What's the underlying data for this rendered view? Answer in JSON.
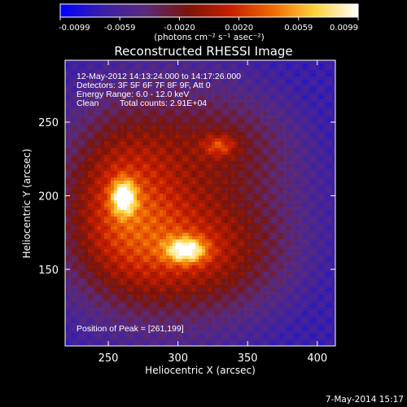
{
  "chart_data": {
    "type": "heatmap",
    "title": "Reconstructed RHESSI Image",
    "xlabel": "Heliocentric X (arcsec)",
    "ylabel": "Heliocentric Y (arcsec)",
    "xlim": [
      219,
      413
    ],
    "ylim": [
      98,
      292
    ],
    "x_ticks": [
      250,
      300,
      350,
      400
    ],
    "y_ticks": [
      150,
      200,
      250
    ],
    "colorbar": {
      "min": -0.0099,
      "max": 0.0099,
      "tick_labels": [
        "-0.0099",
        "-0.0059",
        "-0.0020",
        "0.0020",
        "0.0059",
        "0.0099"
      ],
      "unit_label": "(photons cm⁻² s⁻¹ asec⁻²)",
      "colormap": [
        "#0000ff",
        "#3a1fa8",
        "#5a2a7a",
        "#7a1408",
        "#c81e00",
        "#f06a00",
        "#ffd23c",
        "#ffffff"
      ]
    },
    "sources": [
      {
        "x": 261,
        "y": 199,
        "peak": 0.0099,
        "sigma_x": 6,
        "sigma_y": 8
      },
      {
        "x": 306,
        "y": 163,
        "peak": 0.0094,
        "sigma_x": 10,
        "sigma_y": 6
      },
      {
        "x": 330,
        "y": 234,
        "peak": 0.0046,
        "sigma_x": 8,
        "sigma_y": 5
      }
    ],
    "background_level": -0.0035,
    "annotations": {
      "time_range": "12-May-2012 14:13:24.000 to 14:17:26.000",
      "detectors": "Detectors: 3F 5F 6F 7F 8F 9F, Att 0",
      "energy": "Energy Range: 6.0 - 12.0 keV",
      "clean": "Clean",
      "total_counts": "Total counts: 2.91E+04",
      "peak_position": "Position of Peak = [261,199]"
    },
    "footer_date": "7-May-2014 15:17"
  }
}
